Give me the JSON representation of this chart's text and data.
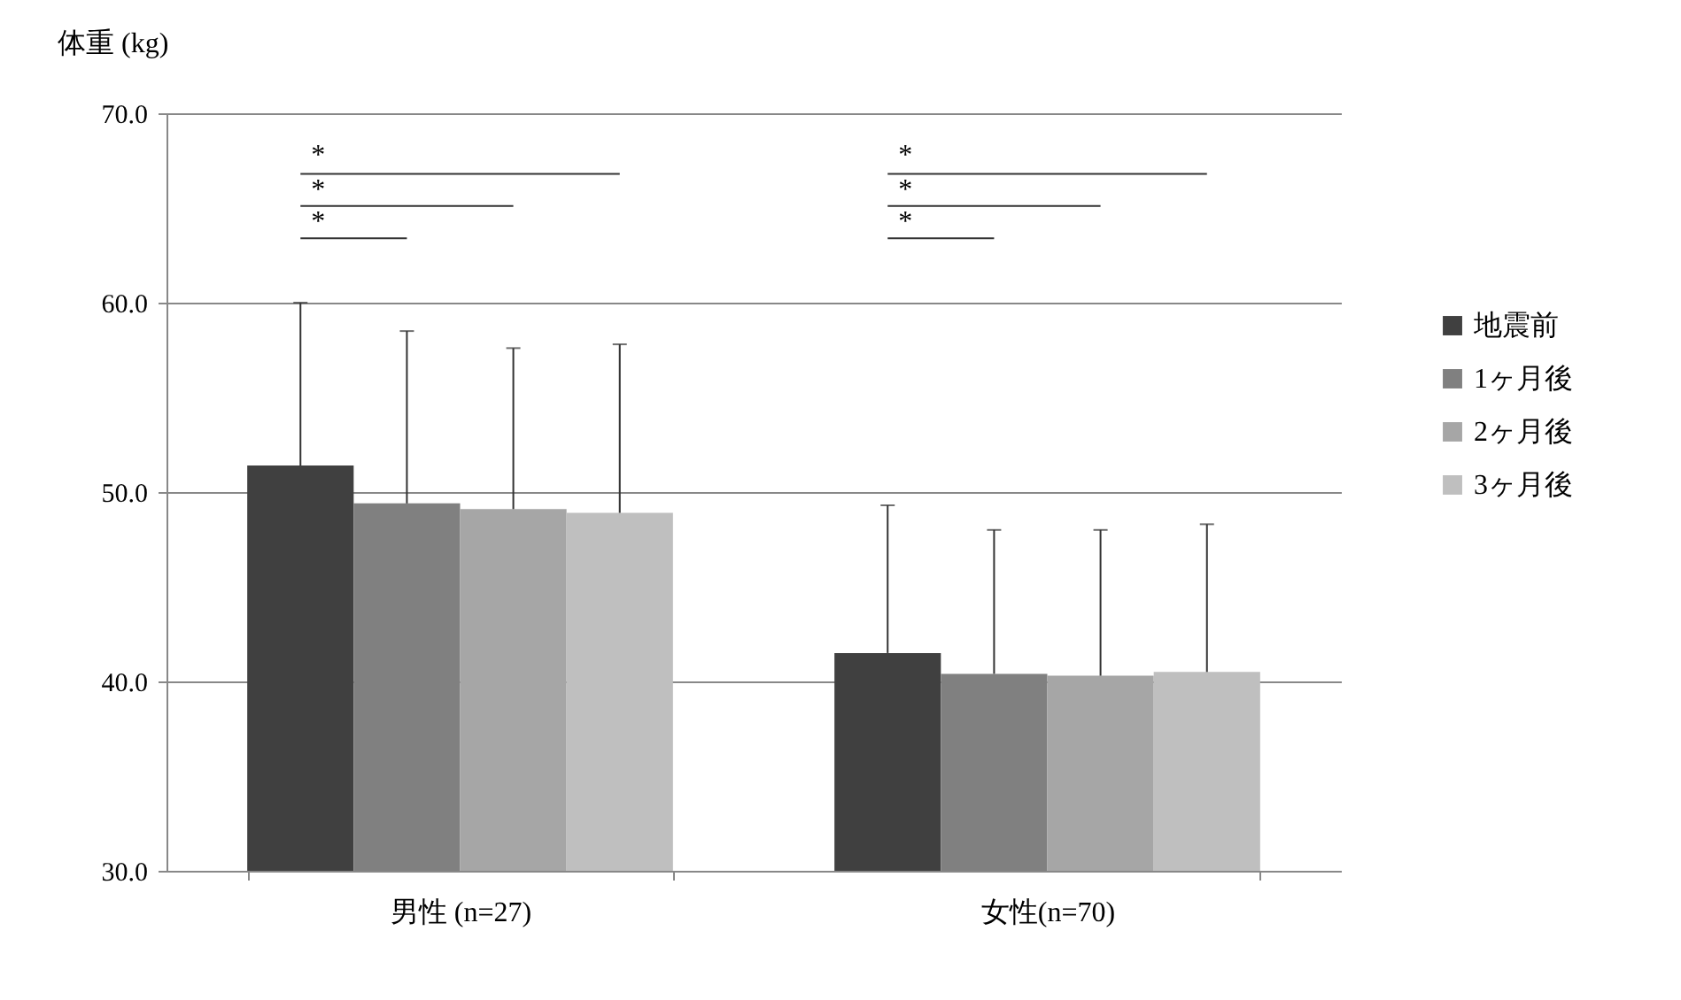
{
  "chart_data": {
    "type": "bar",
    "ylabel": "体重 (kg)",
    "categories": [
      "男性 (n=27)",
      "女性(n=70)"
    ],
    "series": [
      {
        "name": "地震前",
        "color": "#404040",
        "values": [
          51.4,
          41.5
        ],
        "errors": [
          [
            51.4,
            60.0
          ],
          [
            41.5,
            49.3
          ]
        ]
      },
      {
        "name": "1ヶ月後",
        "color": "#808080",
        "values": [
          49.4,
          40.4
        ],
        "errors": [
          [
            49.4,
            58.5
          ],
          [
            40.4,
            48.0
          ]
        ]
      },
      {
        "name": "2ヶ月後",
        "color": "#a6a6a6",
        "values": [
          49.1,
          40.3
        ],
        "errors": [
          [
            49.1,
            57.6
          ],
          [
            40.3,
            48.0
          ]
        ]
      },
      {
        "name": "3ヶ月後",
        "color": "#bfbfbf",
        "values": [
          48.9,
          40.5
        ],
        "errors": [
          [
            48.9,
            57.8
          ],
          [
            40.5,
            48.3
          ]
        ]
      }
    ],
    "ylim": [
      30,
      70
    ],
    "yticks": [
      {
        "value": 30,
        "label": "30.0"
      },
      {
        "value": 40,
        "label": "40.0"
      },
      {
        "value": 50,
        "label": "50.0"
      },
      {
        "value": 60,
        "label": "60.0"
      },
      {
        "value": 70,
        "label": "70.0"
      }
    ],
    "grid": "y",
    "legend": "right",
    "annotations": [
      "*",
      "*",
      "*",
      "*",
      "*",
      "*"
    ]
  }
}
